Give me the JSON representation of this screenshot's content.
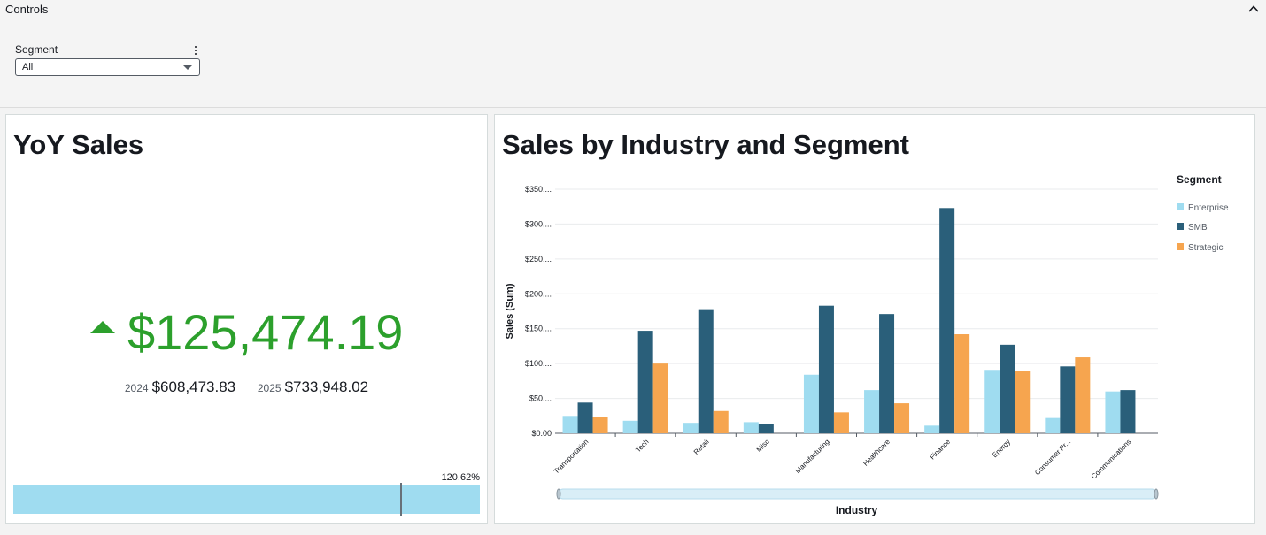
{
  "controls": {
    "title": "Controls",
    "segment_label": "Segment",
    "segment_value": "All"
  },
  "kpi": {
    "title": "YoY Sales",
    "value": "$125,474.19",
    "prev_year": "2024",
    "prev_amount": "$608,473.83",
    "curr_year": "2025",
    "curr_amount": "$733,948.02",
    "progress_label": "120.62%",
    "progress_fraction": 0.8288,
    "colors": {
      "value": "#2ca02c",
      "bar": "#9fdcf0"
    }
  },
  "chart": {
    "title": "Sales by Industry and Segment",
    "legend_title": "Segment"
  },
  "chart_data": {
    "type": "bar",
    "title": "Sales by Industry and Segment",
    "xlabel": "Industry",
    "ylabel": "Sales (Sum)",
    "ylim": [
      0,
      350
    ],
    "yticks": [
      0,
      50,
      100,
      150,
      200,
      250,
      300,
      350
    ],
    "ytick_labels": [
      "$0.00",
      "$50....",
      "$100....",
      "$150....",
      "$200....",
      "$250....",
      "$300....",
      "$350...."
    ],
    "categories": [
      "Transportation",
      "Tech",
      "Retail",
      "Misc",
      "Manufacturing",
      "Healthcare",
      "Finance",
      "Energy",
      "Consumer Pr...",
      "Communications"
    ],
    "series": [
      {
        "name": "Enterprise",
        "color": "#9fdcf0",
        "values": [
          25,
          18,
          15,
          16,
          84,
          62,
          11,
          91,
          22,
          60
        ]
      },
      {
        "name": "SMB",
        "color": "#2a5f7a",
        "values": [
          44,
          147,
          178,
          13,
          183,
          171,
          323,
          127,
          96,
          62
        ]
      },
      {
        "name": "Strategic",
        "color": "#f6a54f",
        "values": [
          23,
          100,
          32,
          0,
          30,
          43,
          142,
          90,
          109,
          0
        ]
      }
    ],
    "grid": true,
    "legend": "right"
  }
}
